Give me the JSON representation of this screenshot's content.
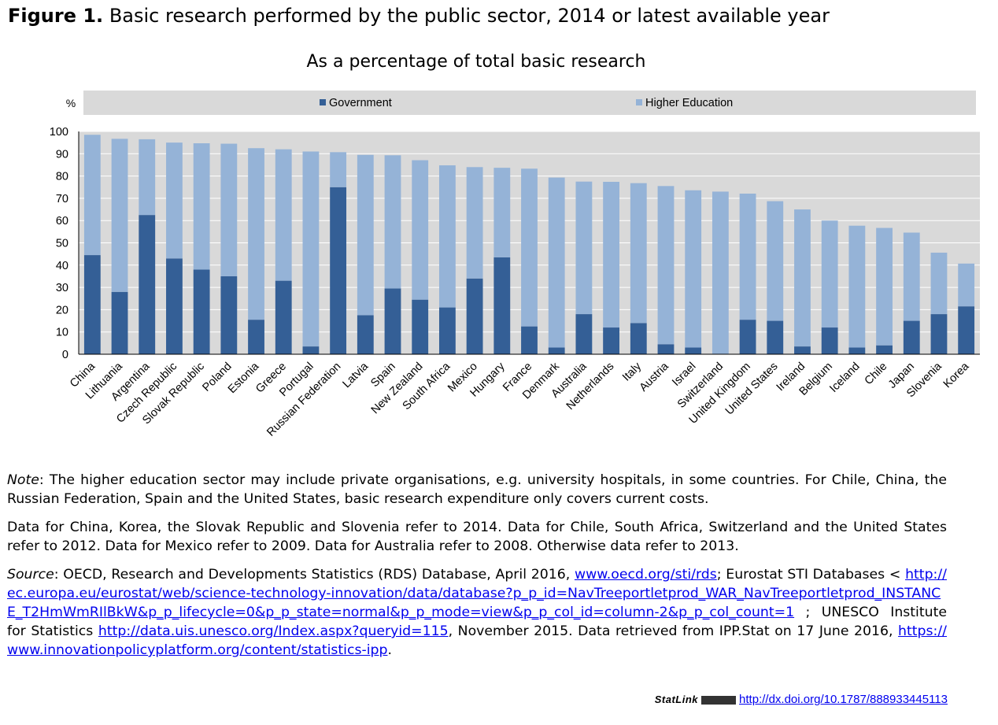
{
  "figure": {
    "label": "Figure 1.",
    "title": "Basic research performed by the public sector, 2014 or latest available year"
  },
  "chart_data": {
    "type": "bar",
    "stacked": true,
    "subtitle": "As a percentage of total basic research",
    "ylabel": "%",
    "ylim": [
      0,
      100
    ],
    "yticks": [
      0,
      10,
      20,
      30,
      40,
      50,
      60,
      70,
      80,
      90,
      100
    ],
    "grid": true,
    "legend_position": "top",
    "categories": [
      "China",
      "Lithuania",
      "Argentina",
      "Czech Republic",
      "Slovak Republic",
      "Poland",
      "Estonia",
      "Greece",
      "Portugal",
      "Russian Federation",
      "Latvia",
      "Spain",
      "New Zealand",
      "South Africa",
      "Mexico",
      "Hungary",
      "France",
      "Denmark",
      "Australia",
      "Netherlands",
      "Italy",
      "Austria",
      "Israel",
      "Switzerland",
      "United Kingdom",
      "United States",
      "Ireland",
      "Belgium",
      "Iceland",
      "Chile",
      "Japan",
      "Slovenia",
      "Korea"
    ],
    "series": [
      {
        "name": "Government",
        "color": "#345F96",
        "values": [
          44.5,
          28,
          62.5,
          43,
          38,
          35,
          15.5,
          33,
          3.5,
          75,
          17.5,
          29.5,
          24.5,
          21,
          34,
          43.5,
          12.5,
          3,
          18,
          12,
          14,
          4.5,
          3,
          0,
          15.5,
          15,
          3.5,
          12,
          3,
          4,
          15,
          18,
          21.5
        ]
      },
      {
        "name": "Higher Education",
        "color": "#95B3D7",
        "values": [
          54,
          68.7,
          34,
          52,
          56.7,
          59.5,
          77,
          59,
          87.5,
          15.7,
          72,
          59.8,
          62.6,
          63.8,
          50,
          40.2,
          70.8,
          76.3,
          59.5,
          65.4,
          62.8,
          71,
          70.6,
          73,
          56.6,
          53.7,
          61.5,
          48,
          54.7,
          52.7,
          39.6,
          27.6,
          19.2
        ]
      }
    ]
  },
  "notes": {
    "note_label": "Note",
    "note_text": ": The higher education sector may include private organisations, e.g. university hospitals, in some countries. For Chile, China, the Russian Federation, Spain and the United States, basic research expenditure only covers current costs.",
    "data_years": "Data for China, Korea, the Slovak Republic and Slovenia refer to 2014. Data for Chile, South Africa, Switzerland and the United States refer to 2012. Data for Mexico refer to 2009. Data for Australia refer to 2008. Otherwise data refer to 2013.",
    "source_label": "Source",
    "source_part1": ": OECD, Research and Developments Statistics (RDS) Database, April 2016, ",
    "link1": "www.oecd.org/sti/rds",
    "source_part2": "; Eurostat STI Databases < ",
    "link2": "http://ec.europa.eu/eurostat/web/science-technology-innovation/data/database?p_p_id=NavTreeportletprod_WAR_NavTreeportletprod_INSTANCE_T2HmWmRIlBkW&p_p_lifecycle=0&p_p_state=normal&p_p_mode=view&p_p_col_id=column-2&p_p_col_count=1",
    "source_part3": " ; UNESCO Institute for Statistics ",
    "link3": "http://data.uis.unesco.org/Index.aspx?queryid=115",
    "source_part4": ", November 2015. Data retrieved from IPP.Stat on 17 June 2016, ",
    "link4": "https://www.innovationpolicyplatform.org/content/statistics-ipp",
    "source_end": "."
  },
  "statlink": {
    "label": "StatLink",
    "logo_text": "",
    "url": "http://dx.doi.org/10.1787/888933445113"
  }
}
